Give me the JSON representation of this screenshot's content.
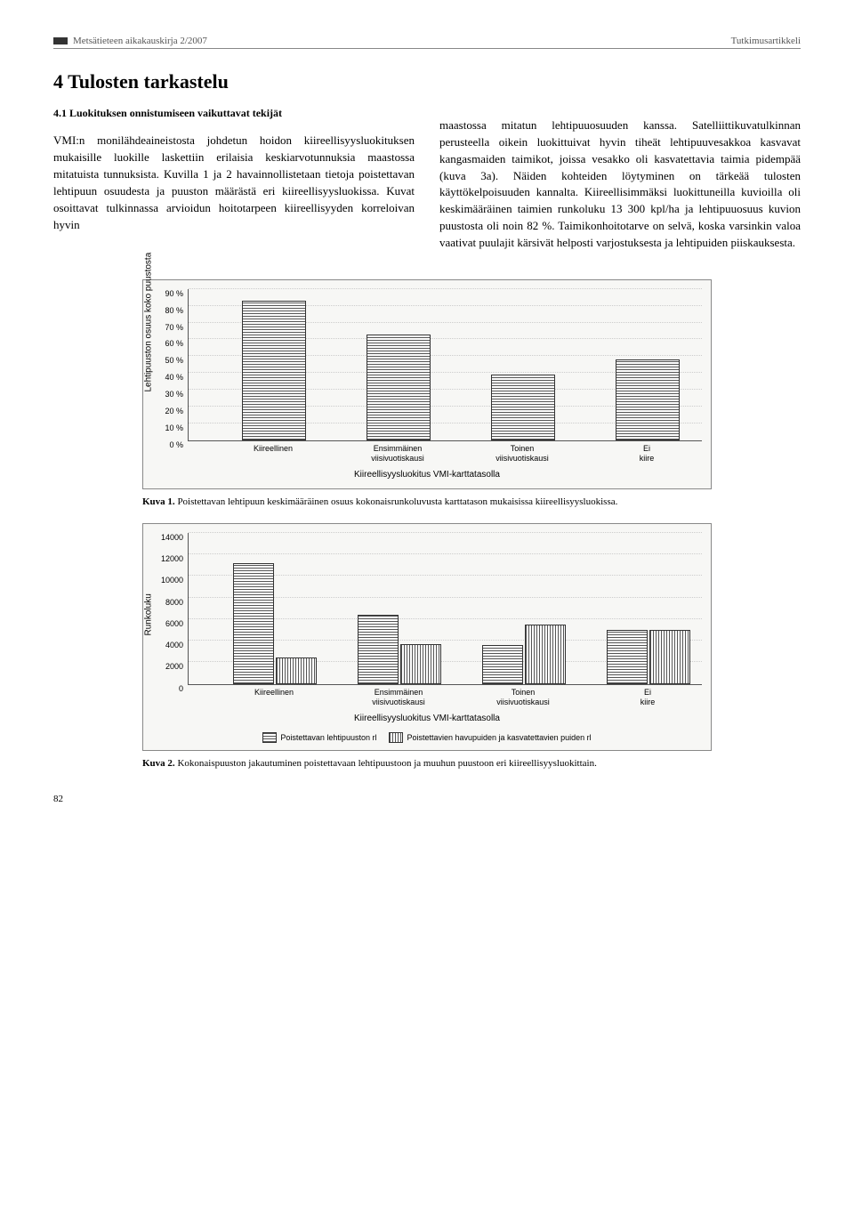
{
  "header": {
    "journal": "Metsätieteen aikakauskirja 2/2007",
    "section": "Tutkimusartikkeli"
  },
  "section_title": "4 Tulosten tarkastelu",
  "subsection": "4.1 Luokituksen onnistumiseen vaikuttavat tekijät",
  "left_col": "VMI:n monilähdeaineistosta johdetun hoidon kiireellisyysluokituksen mukaisille luokille laskettiin erilaisia keskiarvotunnuksia maastossa mitatuista tunnuksista. Kuvilla 1 ja 2 havainnollistetaan tietoja poistettavan lehtipuun osuudesta ja puuston määrästä eri kiireellisyysluokissa. Kuvat osoittavat tulkinnassa arvioidun hoitotarpeen kiireellisyyden korreloivan hyvin",
  "right_col": "maastossa mitatun lehtipuuosuuden kanssa. Satelliittikuvatulkinnan perusteella oikein luokittuivat hyvin tiheät lehtipuuvesakkoa kasvavat kangasmaiden taimikot, joissa vesakko oli kasvatettavia taimia pidempää (kuva 3a). Näiden kohteiden löytyminen on tärkeää tulosten käyttökelpoisuuden kannalta. Kiireellisimmäksi luokittuneilla kuvioilla oli keskimääräinen taimien runkoluku 13 300 kpl/ha ja lehtipuuosuus kuvion puustosta oli noin 82 %. Taimikonhoitotarve on selvä, koska varsinkin valoa vaativat puulajit kärsivät helposti varjostuksesta ja lehtipuiden piiskauksesta.",
  "figure1": {
    "ylabel": "Lehtipuuston osuus koko puustosta",
    "yticks": [
      "0 %",
      "10 %",
      "20 %",
      "30 %",
      "40 %",
      "50 %",
      "60 %",
      "70 %",
      "80 %",
      "90 %"
    ],
    "ymax": 90,
    "categories": [
      "Kiireellinen",
      "Ensimmäinen viisivuotiskausi",
      "Toinen viisivuotiskausi",
      "Ei kiire"
    ],
    "values": [
      82,
      62,
      38,
      47
    ],
    "xaxis_title": "Kiireellisyysluokitus VMI-karttatasolla"
  },
  "figure1_caption_label": "Kuva 1.",
  "figure1_caption": "Poistettavan lehtipuun keskimääräinen osuus kokonaisrunkoluvusta karttatason mukaisissa kiireellisyysluokissa.",
  "figure2": {
    "ylabel": "Runkoluku",
    "yticks": [
      "0",
      "2000",
      "4000",
      "6000",
      "8000",
      "10000",
      "12000",
      "14000"
    ],
    "ymax": 14000,
    "categories": [
      "Kiireellinen",
      "Ensimmäinen viisivuotiskausi",
      "Toinen viisivuotiskausi",
      "Ei kiire"
    ],
    "series": [
      {
        "name": "Poistettavan lehtipuuston rl",
        "values": [
          11000,
          6200,
          3400,
          4800
        ]
      },
      {
        "name": "Poistettavien havupuiden ja kasvatettavien puiden rl",
        "values": [
          2300,
          3500,
          5300,
          4800
        ]
      }
    ],
    "xaxis_title": "Kiireellisyysluokitus VMI-karttatasolla"
  },
  "figure2_caption_label": "Kuva 2.",
  "figure2_caption": "Kokonaispuuston jakautuminen poistettavaan lehtipuustoon ja muuhun puustoon eri kiireellisyysluokittain.",
  "page_number": "82"
}
